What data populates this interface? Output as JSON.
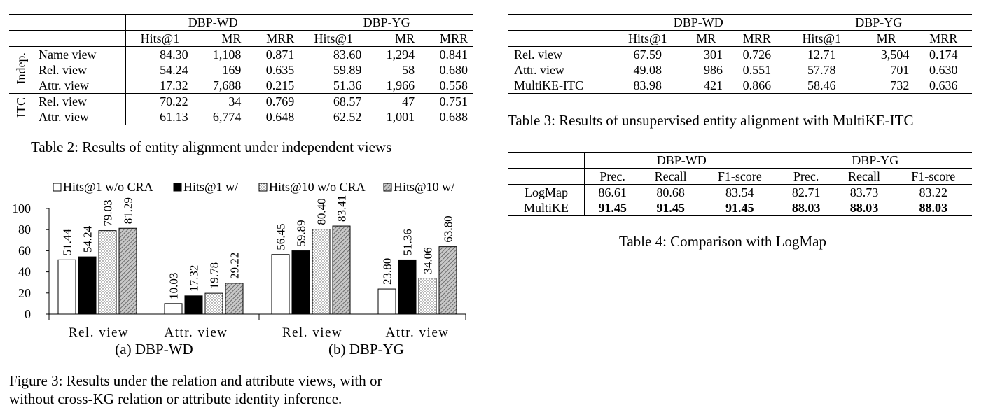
{
  "table2": {
    "groups": [
      "DBP-WD",
      "DBP-YG"
    ],
    "metrics": [
      "Hits@1",
      "MR",
      "MRR",
      "Hits@1",
      "MR",
      "MRR"
    ],
    "sections": [
      {
        "label": "Indep.",
        "rows": [
          {
            "name": "Name view",
            "cells": [
              "84.30",
              "1,108",
              "0.871",
              "83.60",
              "1,294",
              "0.841"
            ]
          },
          {
            "name": "Rel. view",
            "cells": [
              "54.24",
              "169",
              "0.635",
              "59.89",
              "58",
              "0.680"
            ]
          },
          {
            "name": "Attr. view",
            "cells": [
              "17.32",
              "7,688",
              "0.215",
              "51.36",
              "1,966",
              "0.558"
            ]
          }
        ]
      },
      {
        "label": "ITC",
        "rows": [
          {
            "name": "Rel. view",
            "cells": [
              "70.22",
              "34",
              "0.769",
              "68.57",
              "47",
              "0.751"
            ]
          },
          {
            "name": "Attr. view",
            "cells": [
              "61.13",
              "6,774",
              "0.648",
              "62.52",
              "1,001",
              "0.688"
            ]
          }
        ]
      }
    ],
    "caption": "Table 2: Results of entity alignment under independent views"
  },
  "table3": {
    "groups": [
      "DBP-WD",
      "DBP-YG"
    ],
    "metrics": [
      "Hits@1",
      "MR",
      "MRR",
      "Hits@1",
      "MR",
      "MRR"
    ],
    "rows": [
      {
        "name": "Rel. view",
        "cells": [
          "67.59",
          "301",
          "0.726",
          "12.71",
          "3,504",
          "0.174"
        ]
      },
      {
        "name": "Attr. view",
        "cells": [
          "49.08",
          "986",
          "0.551",
          "57.78",
          "701",
          "0.630"
        ]
      },
      {
        "name": "MultiKE-ITC",
        "cells": [
          "83.98",
          "421",
          "0.866",
          "58.46",
          "732",
          "0.636"
        ]
      }
    ],
    "caption": "Table 3: Results of unsupervised entity alignment with MultiKE-ITC"
  },
  "table4": {
    "groups": [
      "DBP-WD",
      "DBP-YG"
    ],
    "metrics": [
      "Prec.",
      "Recall",
      "F1-score",
      "Prec.",
      "Recall",
      "F1-score"
    ],
    "rows": [
      {
        "name": "LogMap",
        "cells": [
          "86.61",
          "80.68",
          "83.54",
          "82.71",
          "83.73",
          "83.22"
        ],
        "bold": false
      },
      {
        "name": "MultiKE",
        "cells": [
          "91.45",
          "91.45",
          "91.45",
          "88.03",
          "88.03",
          "88.03"
        ],
        "bold": true
      }
    ],
    "caption": "Table 4: Comparison with LogMap"
  },
  "chart_data": {
    "type": "bar",
    "legend": [
      "Hits@1 w/o CRA",
      "Hits@1 w/",
      "Hits@10 w/o CRA",
      "Hits@10 w/"
    ],
    "legend_position": "top",
    "ylim": [
      0,
      100
    ],
    "yticks": [
      0,
      20,
      40,
      60,
      80,
      100
    ],
    "panels": [
      {
        "subtitle": "(a) DBP-WD",
        "categories": [
          "Rel. view",
          "Attr. view"
        ],
        "series": [
          {
            "name": "Hits@1 w/o CRA",
            "values": [
              51.44,
              10.03
            ]
          },
          {
            "name": "Hits@1 w/",
            "values": [
              54.24,
              17.32
            ]
          },
          {
            "name": "Hits@10 w/o CRA",
            "values": [
              79.03,
              19.78
            ]
          },
          {
            "name": "Hits@10 w/",
            "values": [
              81.29,
              29.22
            ]
          }
        ]
      },
      {
        "subtitle": "(b) DBP-YG",
        "categories": [
          "Rel. view",
          "Attr. view"
        ],
        "series": [
          {
            "name": "Hits@1 w/o CRA",
            "values": [
              56.45,
              23.8
            ]
          },
          {
            "name": "Hits@1 w/",
            "values": [
              59.89,
              51.36
            ]
          },
          {
            "name": "Hits@10 w/o CRA",
            "values": [
              80.4,
              34.06
            ]
          },
          {
            "name": "Hits@10 w/",
            "values": [
              83.41,
              63.8
            ]
          }
        ]
      }
    ],
    "caption": "Figure 3: Results under the relation and attribute views, with or",
    "caption2": "without cross-KG relation or attribute identity inference."
  }
}
